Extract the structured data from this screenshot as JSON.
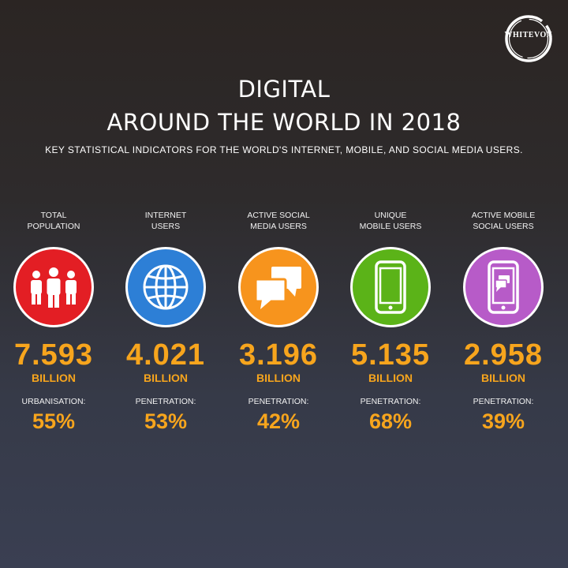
{
  "brand": {
    "logo_text": "WHITEVOX"
  },
  "header": {
    "title_line1": "DIGITAL",
    "title_line2": "AROUND THE WORLD IN 2018",
    "subtitle": "KEY STATISTICAL INDICATORS FOR THE WORLD'S INTERNET, MOBILE, AND SOCIAL MEDIA USERS."
  },
  "colors": {
    "accent": "#f7a51d",
    "population": "#e31e24",
    "internet": "#2d7fd6",
    "social": "#f7941d",
    "mobile": "#5bb318",
    "mobile_social": "#b75bc8"
  },
  "stats": [
    {
      "label_line1": "TOTAL",
      "label_line2": "POPULATION",
      "icon": "people-icon",
      "value": "7.593",
      "unit": "BILLION",
      "sublabel": "URBANISATION:",
      "percent": "55%"
    },
    {
      "label_line1": "INTERNET",
      "label_line2": "USERS",
      "icon": "globe-icon",
      "value": "4.021",
      "unit": "BILLION",
      "sublabel": "PENETRATION:",
      "percent": "53%"
    },
    {
      "label_line1": "ACTIVE SOCIAL",
      "label_line2": "MEDIA USERS",
      "icon": "chat-bubbles-icon",
      "value": "3.196",
      "unit": "BILLION",
      "sublabel": "PENETRATION:",
      "percent": "42%"
    },
    {
      "label_line1": "UNIQUE",
      "label_line2": "MOBILE USERS",
      "icon": "smartphone-icon",
      "value": "5.135",
      "unit": "BILLION",
      "sublabel": "PENETRATION:",
      "percent": "68%"
    },
    {
      "label_line1": "ACTIVE MOBILE",
      "label_line2": "SOCIAL USERS",
      "icon": "mobile-chat-icon",
      "value": "2.958",
      "unit": "BILLION",
      "sublabel": "PENETRATION:",
      "percent": "39%"
    }
  ]
}
